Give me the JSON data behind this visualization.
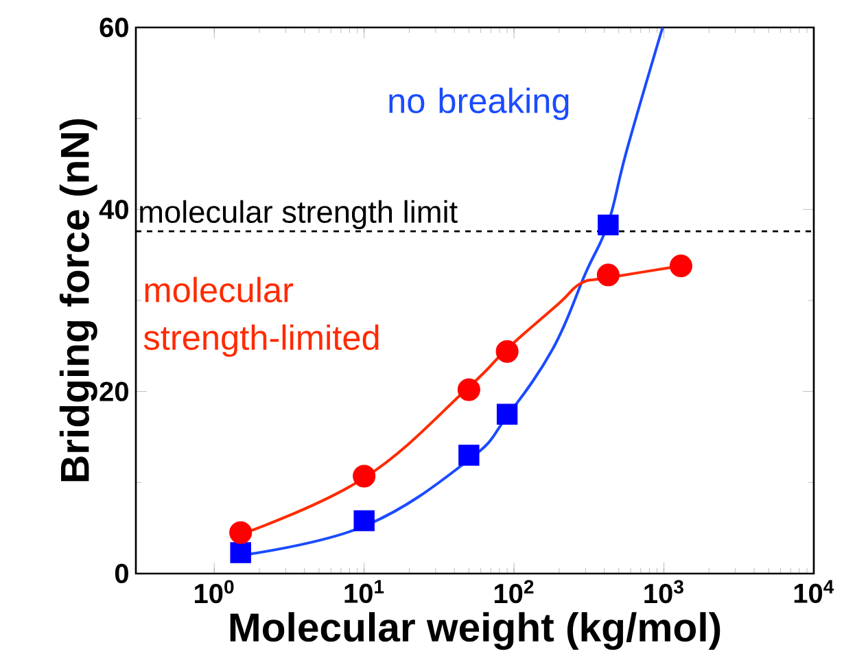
{
  "chart_data": {
    "type": "scatter",
    "xlabel": "Molecular weight (kg/mol)",
    "ylabel": "Bridging force (nN)",
    "log": "x",
    "xlim": [
      0.3,
      10000
    ],
    "ylim": [
      0,
      60
    ],
    "xticks": [
      {
        "value": 1,
        "label": "10$^{0}$"
      },
      {
        "value": 10,
        "label": "10$^{1}$"
      },
      {
        "value": 100,
        "label": "10$^{2}$"
      },
      {
        "value": 1000,
        "label": "10$^{3}$"
      },
      {
        "value": 10000,
        "label": "10$^{4}$"
      }
    ],
    "yticks": [
      0,
      20,
      40,
      60
    ],
    "series": [
      {
        "type": "line",
        "color": "#1a4bff",
        "marker": "none",
        "x": [
          1.5,
          10,
          50,
          90,
          183,
          300,
          425,
          565,
          980
        ],
        "values": [
          2.0,
          5.2,
          12.5,
          17.3,
          24.8,
          33,
          38.5,
          46.5,
          60
        ]
      },
      {
        "type": "line",
        "color": "#ff2a00",
        "marker": "none",
        "x": [
          1.5,
          10,
          50,
          90,
          200,
          280,
          425,
          1300
        ],
        "values": [
          4.3,
          10.5,
          20.5,
          24.7,
          29.7,
          31.9,
          32.5,
          33.8
        ]
      },
      {
        "color": "#0000ff",
        "marker": "square",
        "x": [
          1.5,
          10,
          50,
          90,
          425
        ],
        "values": [
          2.3,
          5.8,
          13.0,
          17.5,
          38.3
        ]
      },
      {
        "color": "#ff0000",
        "marker": "circle",
        "x": [
          1.5,
          10,
          50,
          90,
          425,
          1300
        ],
        "values": [
          4.5,
          10.7,
          20.2,
          24.4,
          32.8,
          33.8
        ]
      }
    ],
    "ref_lines": [
      {
        "axis": "y",
        "value": 37.6,
        "label": "molecular strength limit",
        "color": "#000000",
        "line_style": "dashed"
      }
    ],
    "annotations": [
      "no breaking",
      "molecular strength-limited"
    ]
  }
}
